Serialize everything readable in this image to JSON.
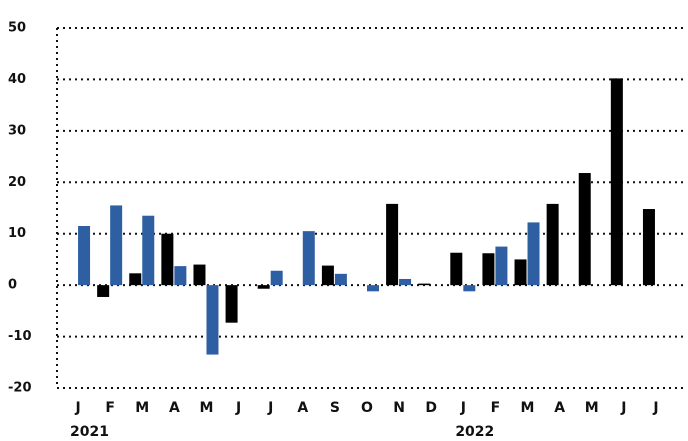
{
  "chart_data": {
    "type": "bar",
    "categories": [
      "J",
      "F",
      "M",
      "A",
      "M",
      "J",
      "J",
      "A",
      "S",
      "O",
      "N",
      "D",
      "J",
      "F",
      "M",
      "A",
      "M",
      "J",
      "J"
    ],
    "year_labels": [
      "2021",
      "2022"
    ],
    "series": [
      {
        "color": "#000000",
        "values": [
          null,
          -2.3,
          2.3,
          10,
          4,
          -7.3,
          -0.7,
          null,
          3.8,
          null,
          15.8,
          0.3,
          6.3,
          6.2,
          5,
          15.8,
          21.8,
          40.2,
          14.8
        ]
      },
      {
        "color": "#2e5fa3",
        "values": [
          11.5,
          15.5,
          13.5,
          3.7,
          -13.5,
          null,
          2.8,
          10.5,
          2.2,
          -1.2,
          1.2,
          null,
          -1.2,
          7.5,
          12.2,
          null,
          null,
          null,
          null
        ]
      }
    ],
    "ylim": [
      -20,
      50
    ],
    "yticks": [
      -20,
      -10,
      0,
      10,
      20,
      30,
      40,
      50
    ],
    "grid": true
  }
}
